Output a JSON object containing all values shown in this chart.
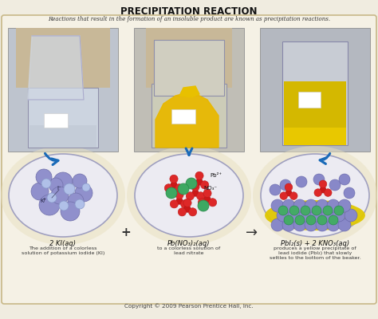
{
  "title": "PRECIPITATION REACTION",
  "subtitle": "Reactions that result in the formation of an insoluble product are known as precipitation reactions.",
  "copyright": "Copyright © 2009 Pearson Prentice Hall, Inc.",
  "bg_outer": "#f0ece0",
  "bg_inner": "#f5f1e5",
  "border_color": "#c8b888",
  "label1": "2 KI(aq)",
  "label2": "Pb(NO₃)₂(aq)",
  "label3": "PbI₂(s) + 2 KNO₃(aq)",
  "caption1": "The addition of a colorless\nsolution of potassium iodide (KI)",
  "caption2": "to a colorless solution of\nlead nitrate",
  "caption3": "produces a yellow precipitate of\nlead iodide (PbI₂) that slowly\nsettles to the bottom of the beaker.",
  "plus_sign": "+",
  "arrow_sign": "→",
  "photo1_bg": "#c8ccd4",
  "photo2_bg": "#c4c0b8",
  "photo3_bg": "#b8bcc4",
  "beaker_color": "#d8dce4",
  "liquid_clear": "#ccd0dc",
  "liquid_yellow": "#e8c820",
  "liquid_yellow2": "#d4b010",
  "arrow_color": "#1a6ab8",
  "oval_fill": "#ecebf2",
  "oval_edge": "#a0a0c0",
  "kplus_color": "#8888cc",
  "iminus_color": "#a8b8e0",
  "no3_red": "#cc2020",
  "pb_green": "#44aa66",
  "pbi2_purple": "#8080c0",
  "pbi2_green": "#44aa66"
}
